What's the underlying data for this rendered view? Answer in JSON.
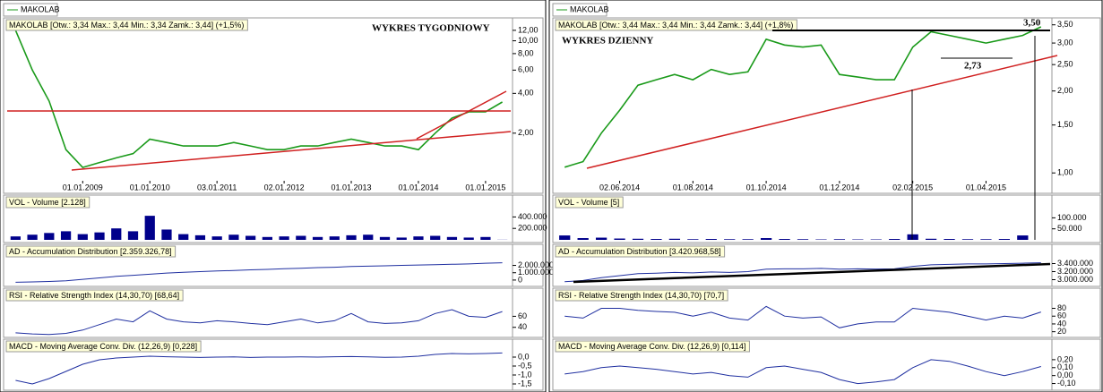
{
  "tabs": [
    "MAKOLAB",
    "MAKOLAB"
  ],
  "chart_data": [
    {
      "type": "line",
      "title": "MAKOLAB [Otw.: 3,34  Max.: 3,44  Min.: 3,34  Zamk.: 3,44] (+1,5%)",
      "annotations": [
        "WYKRES TYGODNIOWY"
      ],
      "log": true,
      "color": "#1a9a1a",
      "categories": [
        null,
        null,
        null,
        null,
        "01.01.2009",
        null,
        null,
        null,
        "01.01.2010",
        null,
        null,
        null,
        "03.01.2011",
        null,
        null,
        null,
        "02.01.2012",
        null,
        null,
        null,
        "01.01.2013",
        null,
        null,
        null,
        "01.01.2014",
        null,
        null,
        null,
        "01.01.2015",
        null
      ],
      "values": [
        12,
        6,
        3.5,
        1.5,
        1.1,
        1.2,
        1.3,
        1.4,
        1.8,
        1.7,
        1.6,
        1.6,
        1.6,
        1.7,
        1.6,
        1.5,
        1.5,
        1.6,
        1.6,
        1.7,
        1.8,
        1.7,
        1.6,
        1.6,
        1.5,
        2.0,
        2.6,
        2.9,
        2.9,
        3.44
      ],
      "ylim": [
        0.9,
        14
      ],
      "yticks": [
        {
          "value": 2,
          "label": "2,00"
        },
        {
          "value": 4,
          "label": "4,00"
        },
        {
          "value": 6,
          "label": "6,00"
        },
        {
          "value": 8,
          "label": "8,00"
        },
        {
          "value": 10,
          "label": "10,00"
        },
        {
          "value": 12,
          "label": "12,00"
        }
      ]
    },
    {
      "type": "bar",
      "title": "VOL - Volume [2.128]",
      "color": "#00008b",
      "values": [
        60000,
        90000,
        120000,
        150000,
        100000,
        130000,
        200000,
        150000,
        420000,
        180000,
        100000,
        80000,
        60000,
        90000,
        70000,
        50000,
        60000,
        70000,
        50000,
        60000,
        80000,
        90000,
        50000,
        40000,
        60000,
        70000,
        50000,
        40000,
        50000,
        2128
      ],
      "ylim": [
        0,
        500000
      ],
      "yticks": [
        {
          "value": 200000,
          "label": "200.000"
        },
        {
          "value": 400000,
          "label": "400.000"
        }
      ]
    },
    {
      "type": "line",
      "title": "AD - Accumulation Distribution [2.359.326,78]",
      "color": "#1f2fa0",
      "values": [
        -300000,
        -250000,
        -200000,
        -100000,
        100000,
        300000,
        500000,
        650000,
        800000,
        950000,
        1050000,
        1150000,
        1250000,
        1300000,
        1400000,
        1450000,
        1550000,
        1600000,
        1700000,
        1750000,
        1850000,
        1900000,
        1950000,
        2000000,
        2050000,
        2100000,
        2150000,
        2200000,
        2300000,
        2359326.78
      ],
      "ylim": [
        -500000,
        2800000
      ],
      "yticks": [
        0,
        {
          "value": 1000000,
          "label": "1.000.000"
        },
        {
          "value": 2000000,
          "label": "2.000.000"
        }
      ]
    },
    {
      "type": "line",
      "title": "RSI - Relative Strength Index (14,30,70) [68,64]",
      "color": "#1f2fa0",
      "values": [
        30,
        28,
        27,
        29,
        35,
        45,
        55,
        50,
        70,
        55,
        50,
        48,
        52,
        50,
        47,
        45,
        50,
        55,
        48,
        52,
        65,
        50,
        47,
        48,
        52,
        65,
        72,
        60,
        58,
        68.64
      ],
      "ylim": [
        25,
        85
      ],
      "yticks": [
        40,
        60
      ]
    },
    {
      "type": "line",
      "title": "MACD - Moving Average Conv. Div. (12,26,9) [0,228]",
      "color": "#1f2fa0",
      "values": [
        -1.3,
        -1.5,
        -1.2,
        -0.8,
        -0.4,
        -0.15,
        -0.05,
        0,
        0.05,
        0.02,
        0,
        -0.02,
        0,
        0.01,
        -0.02,
        0,
        0,
        0.01,
        0,
        0.02,
        0.03,
        0.01,
        -0.01,
        0,
        0.05,
        0.15,
        0.2,
        0.18,
        0.2,
        0.228
      ],
      "ylim": [
        -1.7,
        0.3
      ],
      "yticks": [
        {
          "value": 0,
          "label": "0,0"
        },
        {
          "value": -0.5,
          "label": "-0,5"
        },
        {
          "value": -1,
          "label": "-1,0"
        },
        {
          "value": -1.5,
          "label": "-1,5"
        }
      ]
    },
    {
      "type": "line",
      "title": "MAKOLAB [Otw.: 3,44  Max.: 3,44  Min.: 3,44  Zamk.: 3,44] (+1,8%)",
      "annotations": [
        "WYKRES DZIENNY",
        "3,50",
        "2,73"
      ],
      "log": true,
      "color": "#1a9a1a",
      "categories": [
        null,
        null,
        null,
        "02.06.2014",
        null,
        null,
        null,
        "01.08.2014",
        null,
        null,
        null,
        "01.10.2014",
        null,
        null,
        null,
        "01.12.2014",
        null,
        null,
        null,
        "02.02.2015",
        null,
        null,
        null,
        "01.04.2015",
        null,
        null,
        null
      ],
      "values": [
        1.05,
        1.1,
        1.4,
        1.7,
        2.1,
        2.2,
        2.3,
        2.2,
        2.4,
        2.3,
        2.35,
        3.1,
        2.95,
        2.9,
        2.95,
        2.3,
        2.25,
        2.2,
        2.2,
        2.9,
        3.3,
        3.2,
        3.1,
        3.0,
        3.1,
        3.2,
        3.44
      ],
      "ylim": [
        0.95,
        3.6
      ],
      "yticks": [
        {
          "value": 1,
          "label": "1,00"
        },
        {
          "value": 1.5,
          "label": "1,50"
        },
        {
          "value": 2,
          "label": "2,00"
        },
        {
          "value": 2.5,
          "label": "2,50"
        },
        {
          "value": 3,
          "label": "3,00"
        },
        {
          "value": 3.5,
          "label": "3,50"
        }
      ]
    },
    {
      "type": "bar",
      "title": "VOL - Volume [5]",
      "color": "#00008b",
      "values": [
        20000,
        8000,
        10000,
        6000,
        5000,
        4000,
        5000,
        3000,
        4000,
        3000,
        3000,
        8000,
        4000,
        3000,
        2000,
        3000,
        2000,
        2000,
        4000,
        25000,
        5000,
        4000,
        3000,
        3000,
        4000,
        20000,
        5
      ],
      "ylim": [
        0,
        130000
      ],
      "yticks": [
        {
          "value": 50000,
          "label": "50.000"
        },
        {
          "value": 100000,
          "label": "100.000"
        }
      ]
    },
    {
      "type": "line",
      "title": "AD - Accumulation Distribution [3.420.968,58]",
      "color": "#1f2fa0",
      "values": [
        2950000,
        2980000,
        3050000,
        3100000,
        3150000,
        3160000,
        3180000,
        3170000,
        3190000,
        3180000,
        3200000,
        3260000,
        3270000,
        3270000,
        3280000,
        3260000,
        3270000,
        3265000,
        3270000,
        3330000,
        3370000,
        3380000,
        3390000,
        3390000,
        3400000,
        3410000,
        3420968.58
      ],
      "ylim": [
        2900000,
        3500000
      ],
      "yticks": [
        {
          "value": 3000000,
          "label": "3.000.000"
        },
        {
          "value": 3200000,
          "label": "3.200.000"
        },
        {
          "value": 3400000,
          "label": "3.400.000"
        }
      ]
    },
    {
      "type": "line",
      "title": "RSI - Relative Strength Index (14,30,70) [70,7]",
      "color": "#1f2fa0",
      "values": [
        60,
        55,
        80,
        80,
        75,
        72,
        70,
        60,
        70,
        55,
        50,
        85,
        60,
        55,
        58,
        30,
        40,
        45,
        45,
        80,
        75,
        70,
        60,
        50,
        60,
        55,
        70.7
      ],
      "ylim": [
        10,
        95
      ],
      "yticks": [
        20,
        40,
        60,
        80
      ]
    },
    {
      "type": "line",
      "title": "MACD - Moving Average Conv. Div. (12,26,9) [0,114]",
      "color": "#1f2fa0",
      "values": [
        0.02,
        0.05,
        0.1,
        0.12,
        0.1,
        0.08,
        0.05,
        0.02,
        0.04,
        0,
        -0.02,
        0.1,
        0.12,
        0.08,
        0.04,
        -0.05,
        -0.1,
        -0.08,
        -0.05,
        0.1,
        0.2,
        0.18,
        0.12,
        0.05,
        0,
        0.05,
        0.114
      ],
      "ylim": [
        -0.15,
        0.3
      ],
      "yticks": [
        {
          "value": -0.1,
          "label": "-0,10"
        },
        {
          "value": 0,
          "label": "0,00"
        },
        {
          "value": 0.1,
          "label": "0,10"
        },
        {
          "value": 0.2,
          "label": "0,20"
        }
      ]
    }
  ]
}
